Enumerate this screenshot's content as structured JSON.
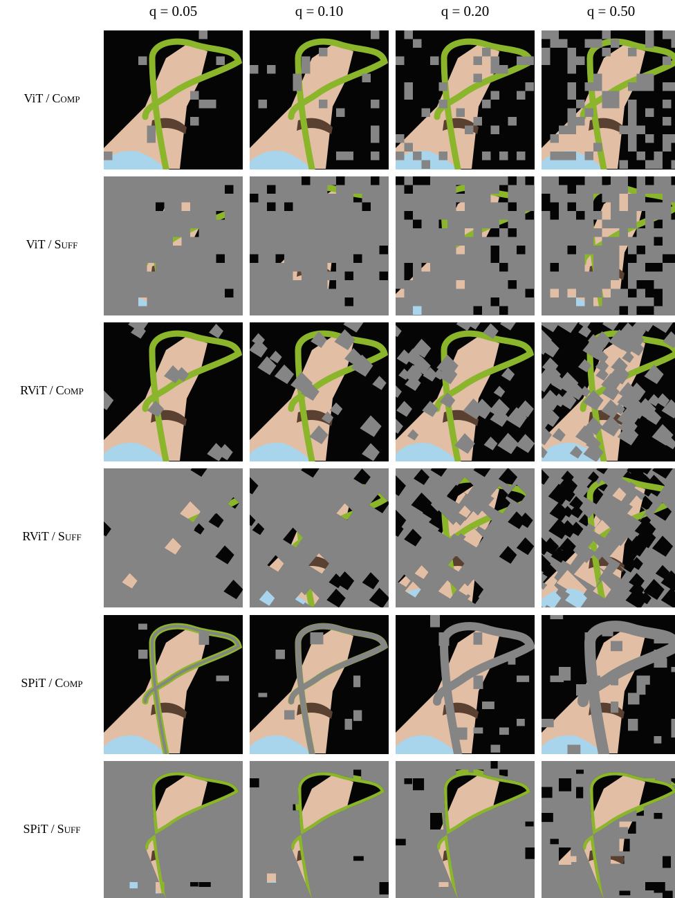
{
  "columns": [
    "q = 0.05",
    "q = 0.10",
    "q = 0.20",
    "q = 0.50"
  ],
  "rows": [
    {
      "model": "ViT",
      "separator": "/",
      "method": "Comp"
    },
    {
      "model": "ViT",
      "separator": "/",
      "method": "Suff"
    },
    {
      "model": "RViT",
      "separator": "/",
      "method": "Comp"
    },
    {
      "model": "RViT",
      "separator": "/",
      "method": "Suff"
    },
    {
      "model": "SPiT",
      "separator": "/",
      "method": "Comp"
    },
    {
      "model": "SPiT",
      "separator": "/",
      "method": "Suff"
    }
  ]
}
